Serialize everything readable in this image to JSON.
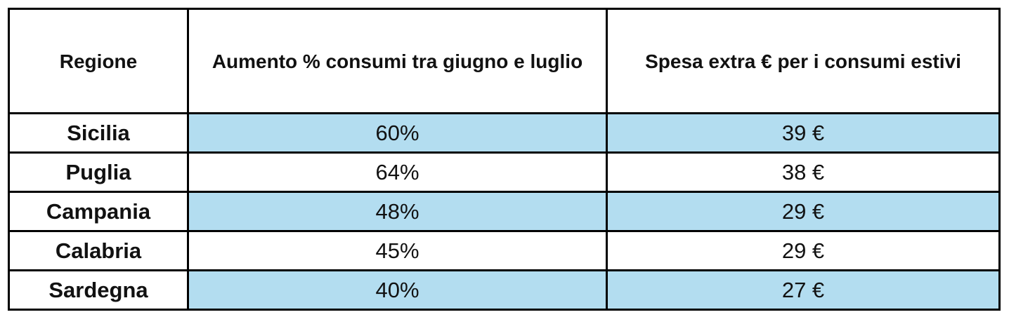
{
  "table": {
    "headers": {
      "regione": "Regione",
      "aumento": "Aumento % consumi tra giugno e luglio",
      "spesa": "Spesa extra € per i consumi estivi"
    },
    "rows": [
      {
        "regione": "Sicilia",
        "aumento": "60%",
        "spesa": "39 €"
      },
      {
        "regione": "Puglia",
        "aumento": "64%",
        "spesa": "38 €"
      },
      {
        "regione": "Campania",
        "aumento": "48%",
        "spesa": "29 €"
      },
      {
        "regione": "Calabria",
        "aumento": "45%",
        "spesa": "29 €"
      },
      {
        "regione": "Sardegna",
        "aumento": "40%",
        "spesa": "27 €"
      }
    ]
  },
  "colors": {
    "shaded_row": "#b3ddf0",
    "border": "#000000",
    "text": "#111111"
  }
}
